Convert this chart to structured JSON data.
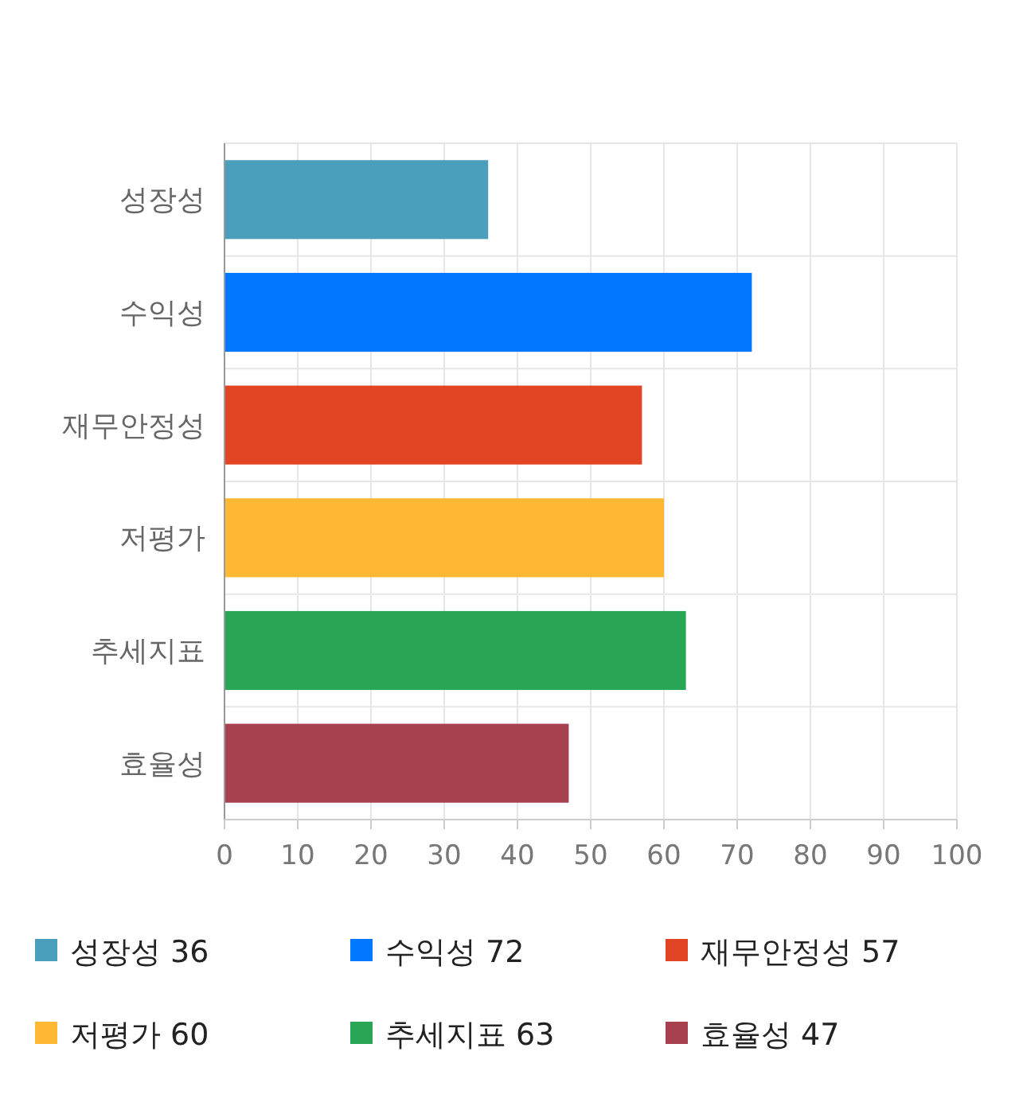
{
  "chart_data": {
    "type": "bar",
    "orientation": "horizontal",
    "stacked": true,
    "categories": [
      "성장성",
      "수익성",
      "재무안정성",
      "저평가",
      "추세지표",
      "효율성"
    ],
    "series": [
      {
        "name": "성장성 36",
        "color": "#4aa0bc",
        "values": [
          36,
          null,
          null,
          null,
          null,
          null
        ]
      },
      {
        "name": "수익성 72",
        "color": "#0077ff",
        "values": [
          null,
          72,
          null,
          null,
          null,
          null
        ]
      },
      {
        "name": "재무안정성 57",
        "color": "#e24524",
        "values": [
          null,
          null,
          57,
          null,
          null,
          null
        ]
      },
      {
        "name": "저평가 60",
        "color": "#ffb833",
        "values": [
          null,
          null,
          null,
          60,
          null,
          null
        ]
      },
      {
        "name": "추세지표 63",
        "color": "#28a655",
        "values": [
          null,
          null,
          null,
          null,
          63,
          null
        ]
      },
      {
        "name": "효율성 47",
        "color": "#a8414f",
        "values": [
          null,
          null,
          null,
          null,
          null,
          47
        ]
      }
    ],
    "xlim": [
      0,
      100
    ],
    "xticks": [
      0,
      10,
      20,
      30,
      40,
      50,
      60,
      70,
      80,
      90,
      100
    ],
    "grid": true,
    "legend": "bottom"
  }
}
